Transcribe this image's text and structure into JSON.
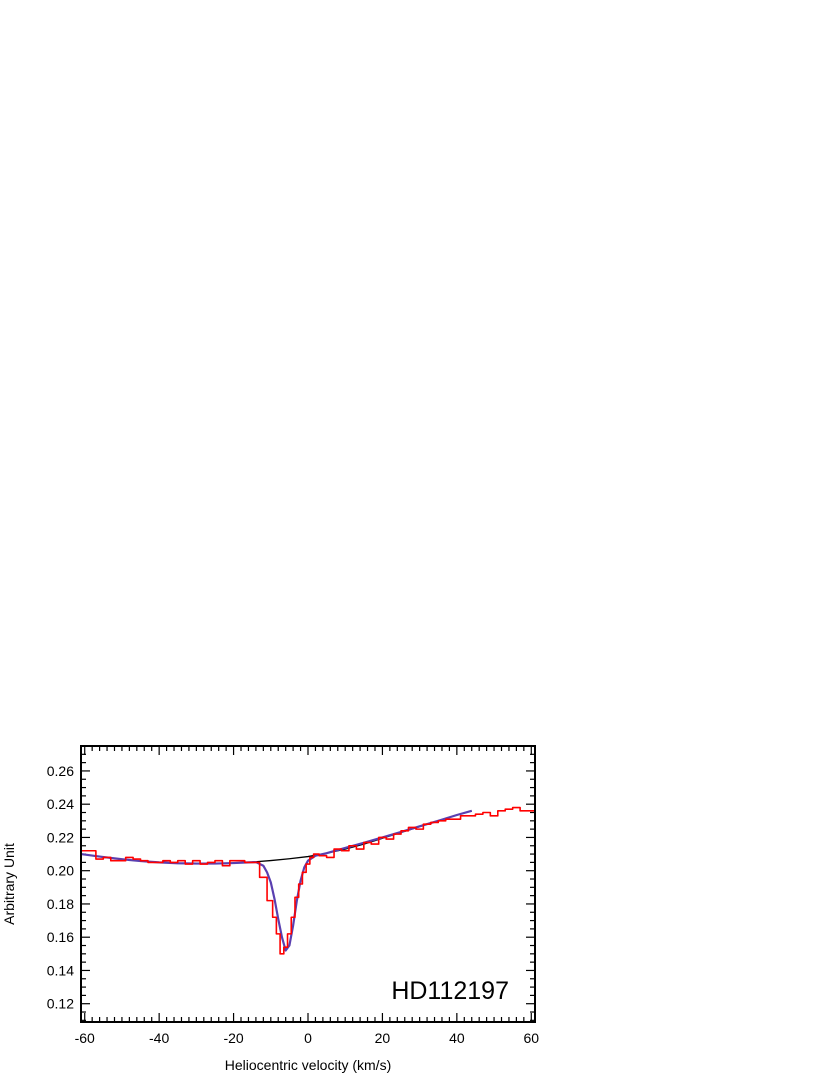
{
  "chart_data": {
    "type": "line",
    "xlabel": "Heliocentric velocity (km/s)",
    "ylabel": "Arbitrary Unit",
    "annotation": "HD112197",
    "xlim": [
      -61,
      61
    ],
    "ylim": [
      0.109,
      0.275
    ],
    "x_ticks": [
      -60,
      -40,
      -20,
      0,
      20,
      40,
      60
    ],
    "y_ticks": [
      0.12,
      0.14,
      0.16,
      0.18,
      0.2,
      0.22,
      0.24,
      0.26
    ],
    "grid": false,
    "colors": {
      "observed": "#ff0000",
      "fit": "#5a3fb0",
      "continuum": "#000000"
    },
    "series": [
      {
        "style": "step",
        "color": "#ff0000",
        "x": [
          -60,
          -58,
          -56,
          -54,
          -52,
          -50,
          -48,
          -46,
          -44,
          -42,
          -40,
          -38,
          -36,
          -34,
          -32,
          -30,
          -28,
          -26,
          -24,
          -22,
          -20,
          -18,
          -16,
          -14,
          -12,
          -10,
          -9,
          -8,
          -7,
          -6,
          -5,
          -4,
          -3,
          -2,
          -1,
          0,
          1,
          2,
          4,
          6,
          8,
          10,
          12,
          14,
          16,
          18,
          20,
          22,
          24,
          26,
          28,
          30,
          32,
          34,
          36,
          38,
          40,
          42,
          44,
          46,
          48,
          50,
          52,
          54,
          56,
          58,
          60
        ],
        "y": [
          0.212,
          0.212,
          0.207,
          0.208,
          0.206,
          0.206,
          0.208,
          0.207,
          0.206,
          0.205,
          0.205,
          0.206,
          0.205,
          0.206,
          0.204,
          0.206,
          0.204,
          0.205,
          0.206,
          0.203,
          0.206,
          0.206,
          0.205,
          0.205,
          0.196,
          0.182,
          0.172,
          0.162,
          0.15,
          0.154,
          0.162,
          0.172,
          0.184,
          0.192,
          0.199,
          0.204,
          0.208,
          0.21,
          0.209,
          0.208,
          0.213,
          0.212,
          0.215,
          0.213,
          0.217,
          0.216,
          0.22,
          0.219,
          0.222,
          0.224,
          0.226,
          0.225,
          0.228,
          0.229,
          0.23,
          0.231,
          0.231,
          0.233,
          0.233,
          0.234,
          0.235,
          0.233,
          0.236,
          0.237,
          0.238,
          0.236,
          0.236
        ]
      },
      {
        "style": "line",
        "color": "#5a3fb0",
        "x": [
          -61,
          -56,
          -50,
          -45,
          -40,
          -35,
          -30,
          -25,
          -20,
          -16,
          -14,
          -12,
          -11,
          -10,
          -9,
          -8,
          -7,
          -6,
          -5,
          -4,
          -3,
          -2,
          -1,
          0,
          2,
          5,
          10,
          15,
          20,
          25,
          30,
          35,
          40,
          44
        ],
        "y": [
          0.21,
          0.2085,
          0.2069,
          0.2058,
          0.205,
          0.2045,
          0.2043,
          0.2043,
          0.2046,
          0.205,
          0.2052,
          0.203,
          0.199,
          0.193,
          0.183,
          0.171,
          0.16,
          0.152,
          0.155,
          0.167,
          0.182,
          0.194,
          0.202,
          0.206,
          0.209,
          0.2105,
          0.2137,
          0.2168,
          0.22,
          0.2233,
          0.2267,
          0.23,
          0.2335,
          0.236
        ]
      },
      {
        "style": "line",
        "color": "#000000",
        "x": [
          -61,
          -55,
          -50,
          -45,
          -40,
          -35,
          -30,
          -25,
          -20,
          -15,
          -10,
          -5,
          0,
          5,
          10,
          15,
          20,
          25,
          30,
          35,
          40,
          44
        ],
        "y": [
          0.21,
          0.2081,
          0.2069,
          0.2058,
          0.205,
          0.2045,
          0.2043,
          0.2043,
          0.2046,
          0.2052,
          0.2061,
          0.2072,
          0.2085,
          0.2105,
          0.213,
          0.216,
          0.2195,
          0.223,
          0.2265,
          0.23,
          0.2335,
          0.236
        ]
      }
    ]
  }
}
